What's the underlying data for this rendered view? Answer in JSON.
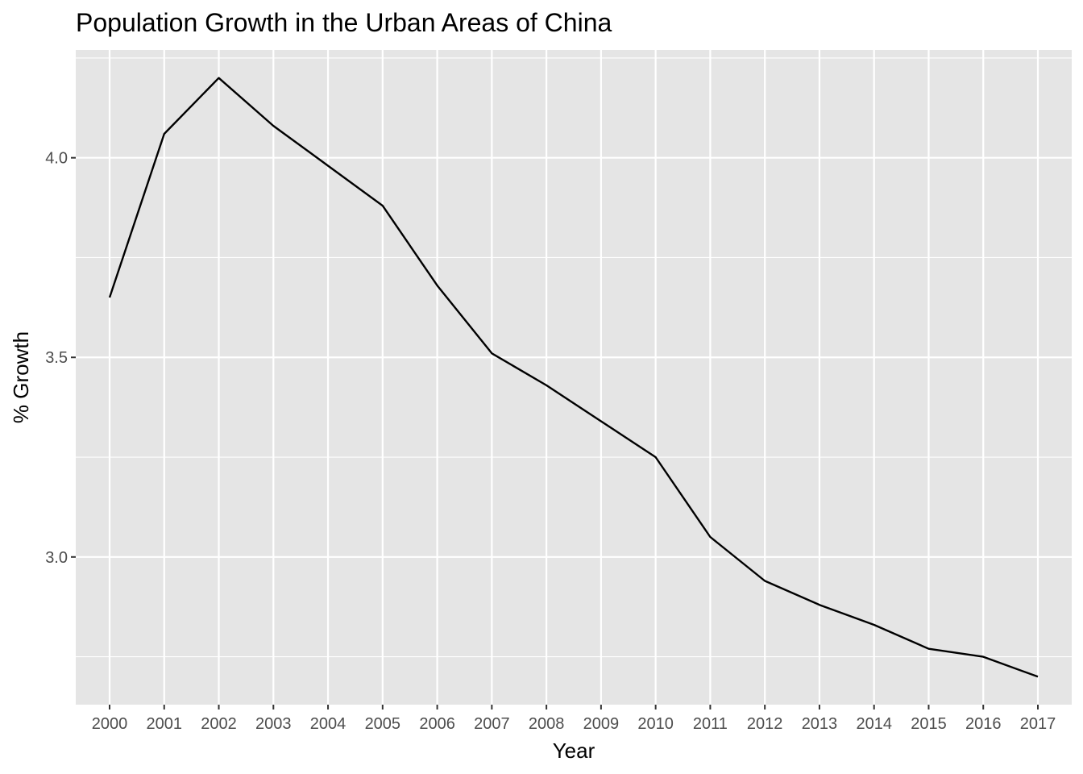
{
  "chart_data": {
    "type": "line",
    "title": "Population Growth in the Urban Areas of China",
    "xlabel": "Year",
    "ylabel": "% Growth",
    "x": [
      "2000",
      "2001",
      "2002",
      "2003",
      "2004",
      "2005",
      "2006",
      "2007",
      "2008",
      "2009",
      "2010",
      "2011",
      "2012",
      "2013",
      "2014",
      "2015",
      "2016",
      "2017"
    ],
    "series": [
      {
        "values": [
          3.65,
          4.06,
          4.2,
          4.08,
          3.98,
          3.88,
          3.68,
          3.51,
          3.43,
          3.34,
          3.25,
          3.05,
          2.94,
          2.88,
          2.83,
          2.77,
          2.75,
          2.7
        ]
      }
    ],
    "ylim": [
      2.63,
      4.27
    ],
    "y_ticks": [
      3.0,
      3.5,
      4.0
    ],
    "y_tick_labels": [
      "3.0",
      "3.5",
      "4.0"
    ],
    "y_minor_ticks": [
      2.75,
      3.25,
      3.75,
      4.25
    ],
    "grid": true,
    "colors": {
      "panel_background": "#e5e5e5",
      "gridline": "#ffffff",
      "line": "#000000",
      "tick_text": "#4d4d4d"
    }
  }
}
